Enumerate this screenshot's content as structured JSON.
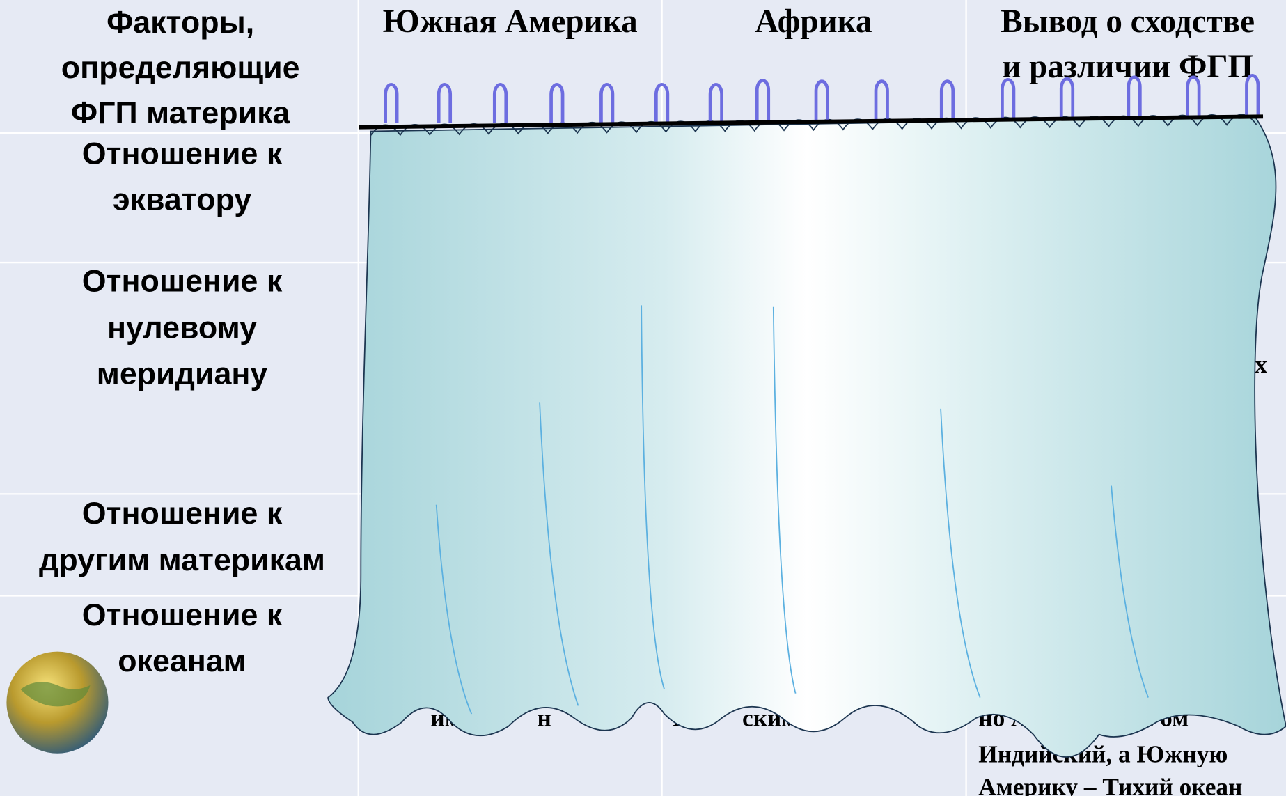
{
  "table": {
    "header": [
      [
        "Факторы,",
        "определяющие",
        "ФГП материка"
      ],
      [
        "Южная Америка"
      ],
      [
        "Африка"
      ],
      [
        "Вывод о сходстве",
        "и различии ФГП"
      ]
    ],
    "rows": [
      {
        "label": [
          "Отношение к",
          "экватору"
        ]
      },
      {
        "label": [
          "Отношение к",
          "нулевому",
          "меридиану"
        ],
        "fragments": [
          "х"
        ]
      },
      {
        "label": [
          "Отношение к",
          "другим материкам"
        ]
      },
      {
        "label": [
          "Отношение к",
          "океанам"
        ],
        "fragments": [
          "им оке",
          "н",
          "Ин",
          "ским о",
          "но А",
          "еще ом",
          "Индийский, а Южную",
          "Америку – Тихий океан"
        ]
      }
    ]
  }
}
